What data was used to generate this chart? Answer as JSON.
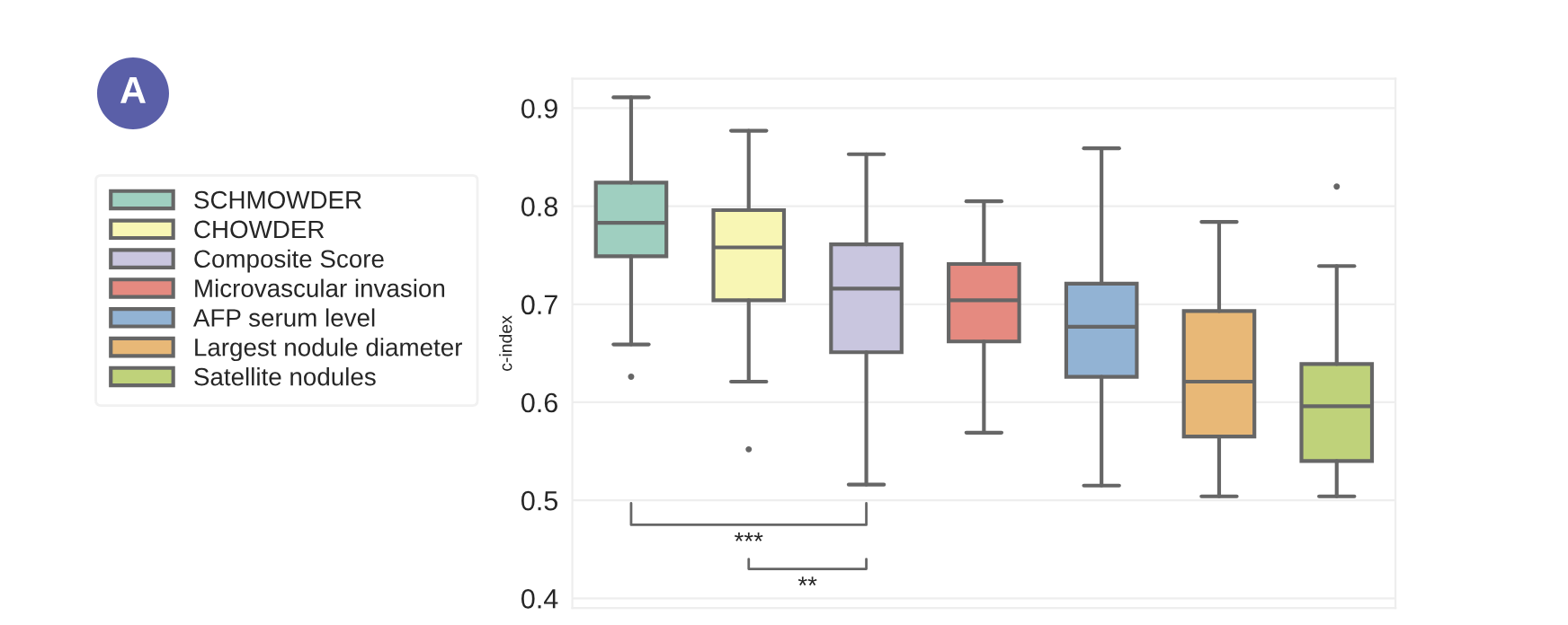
{
  "chart_data": {
    "type": "box",
    "ylabel": "c-index",
    "categories": [
      null,
      null,
      null,
      null,
      null,
      null,
      null
    ],
    "series": [
      {
        "name": "SCHMOWDER",
        "color": "#9fcfc0",
        "boxes": [
          {
            "low": 0.659,
            "q1": 0.749,
            "median": 0.783,
            "q3": 0.824,
            "high": 0.911,
            "outliers": [
              0.626
            ]
          },
          null,
          null,
          null,
          null,
          null,
          null
        ]
      },
      {
        "name": "CHOWDER",
        "color": "#f8f6b4",
        "boxes": [
          null,
          {
            "low": 0.621,
            "q1": 0.704,
            "median": 0.758,
            "q3": 0.796,
            "high": 0.877,
            "outliers": [
              0.552
            ]
          },
          null,
          null,
          null,
          null,
          null
        ]
      },
      {
        "name": "Composite Score",
        "color": "#c9c6df",
        "boxes": [
          null,
          null,
          {
            "low": 0.516,
            "q1": 0.651,
            "median": 0.716,
            "q3": 0.761,
            "high": 0.853
          },
          null,
          null,
          null,
          null
        ]
      },
      {
        "name": "Microvascular invasion",
        "color": "#e58a80",
        "boxes": [
          null,
          null,
          null,
          {
            "low": 0.569,
            "q1": 0.662,
            "median": 0.704,
            "q3": 0.741,
            "high": 0.805
          },
          null,
          null,
          null
        ]
      },
      {
        "name": "AFP serum level",
        "color": "#92b3d4",
        "boxes": [
          null,
          null,
          null,
          null,
          {
            "low": 0.515,
            "q1": 0.626,
            "median": 0.677,
            "q3": 0.721,
            "high": 0.859
          },
          null,
          null
        ]
      },
      {
        "name": "Largest nodule diameter",
        "color": "#e8b877",
        "boxes": [
          null,
          null,
          null,
          null,
          null,
          {
            "low": 0.504,
            "q1": 0.565,
            "median": 0.621,
            "q3": 0.693,
            "high": 0.784
          },
          null
        ]
      },
      {
        "name": "Satellite nodules",
        "color": "#bfd27a",
        "boxes": [
          null,
          null,
          null,
          null,
          null,
          null,
          {
            "low": 0.504,
            "q1": 0.54,
            "median": 0.596,
            "q3": 0.639,
            "high": 0.739,
            "outliers": [
              0.82
            ]
          }
        ]
      }
    ],
    "ylim": [
      0.39,
      0.93
    ],
    "yticks": [
      0.4,
      0.5,
      0.6,
      0.7,
      0.8,
      0.9
    ],
    "grid": "y",
    "legend": "left",
    "tick_labels": "y",
    "annotations": [
      "A",
      "***",
      "**"
    ]
  }
}
